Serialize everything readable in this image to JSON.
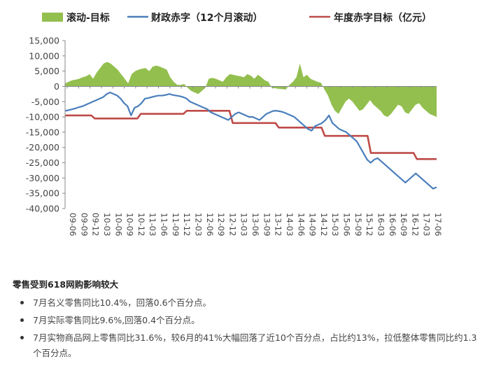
{
  "chart_data": {
    "type": "area+line",
    "title": "",
    "xlabel": "",
    "ylabel": "",
    "ylim": [
      -40000,
      15000
    ],
    "yticks": [
      15000,
      10000,
      5000,
      0,
      -5000,
      -10000,
      -15000,
      -20000,
      -25000,
      -30000,
      -35000,
      -40000
    ],
    "ytick_labels": [
      "15,000",
      "10,000",
      "5,000",
      "0",
      "-5,000",
      "-10,000",
      "-15,000",
      "-20,000",
      "-25,000",
      "-30,000",
      "-35,000",
      "-40,000"
    ],
    "x_tick_labels": [
      "09-06",
      "09-09",
      "09-12",
      "10-03",
      "10-06",
      "10-09",
      "10-12",
      "11-03",
      "11-06",
      "11-09",
      "11-12",
      "12-03",
      "12-06",
      "12-09",
      "12-12",
      "13-03",
      "13-06",
      "13-09",
      "13-12",
      "14-03",
      "14-06",
      "14-09",
      "14-12",
      "15-03",
      "15-06",
      "15-09",
      "15-12",
      "16-03",
      "16-06",
      "16-09",
      "16-12",
      "17-03",
      "17-06"
    ],
    "legend_position": "top",
    "series": [
      {
        "name": "滚动-目标",
        "kind": "area",
        "color": "#93bf4f",
        "values": [
          1000,
          1500,
          2000,
          2200,
          2500,
          3000,
          3300,
          4000,
          2500,
          4500,
          6000,
          7500,
          8000,
          7500,
          6500,
          5500,
          4000,
          2500,
          1000,
          4000,
          5000,
          5500,
          5800,
          6000,
          5000,
          6500,
          6800,
          6500,
          6000,
          5500,
          3000,
          1500,
          500,
          500,
          800,
          -500,
          -1500,
          -2000,
          -2500,
          -1500,
          -500,
          2500,
          2800,
          2500,
          2000,
          1500,
          3000,
          4000,
          3800,
          3500,
          3300,
          3000,
          4000,
          3500,
          2500,
          3800,
          3000,
          2000,
          1500,
          -500,
          -600,
          -800,
          -900,
          -1000,
          500,
          1500,
          3000,
          7500,
          3000,
          3800,
          2500,
          2000,
          1500,
          1200,
          -1000,
          -3000,
          -6000,
          -8000,
          -9000,
          -7000,
          -5000,
          -4000,
          -5000,
          -6500,
          -8000,
          -7500,
          -6000,
          -4500,
          -6000,
          -7000,
          -8000,
          -9500,
          -10000,
          -9000,
          -7500,
          -6000,
          -6500,
          -8500,
          -9000,
          -7500,
          -6000,
          -5500,
          -7000,
          -8000,
          -9000,
          -9500,
          -10000
        ]
      },
      {
        "name": "财政赤字（12个月滚动）",
        "kind": "line",
        "color": "#4a7ebb",
        "values": [
          -8000,
          -7800,
          -7500,
          -7200,
          -6800,
          -6500,
          -6000,
          -5500,
          -5000,
          -4500,
          -4000,
          -3500,
          -2500,
          -2000,
          -2500,
          -3000,
          -4000,
          -5500,
          -6500,
          -9500,
          -7000,
          -6500,
          -5500,
          -4000,
          -3800,
          -3500,
          -3200,
          -3000,
          -3000,
          -2800,
          -2500,
          -2800,
          -3000,
          -3200,
          -3500,
          -4000,
          -5000,
          -5500,
          -6000,
          -6500,
          -7000,
          -7500,
          -8500,
          -9000,
          -9500,
          -10000,
          -10500,
          -11000,
          -10000,
          -9000,
          -8500,
          -9000,
          -9500,
          -10000,
          -10000,
          -10500,
          -11000,
          -10000,
          -9000,
          -8500,
          -8000,
          -8000,
          -8200,
          -8500,
          -9000,
          -9500,
          -10000,
          -11000,
          -12000,
          -13000,
          -14000,
          -14500,
          -13000,
          -12500,
          -12000,
          -11000,
          -9500,
          -12000,
          -13000,
          -14000,
          -14500,
          -15000,
          -16000,
          -17000,
          -18000,
          -20000,
          -22000,
          -24000,
          -25000,
          -24000,
          -23500,
          -24500,
          -25500,
          -26500,
          -27500,
          -28500,
          -29500,
          -30500,
          -31500,
          -30500,
          -29500,
          -28500,
          -29500,
          -30500,
          -31500,
          -32500,
          -33500,
          -33000
        ]
      },
      {
        "name": "年度赤字目标（亿元）",
        "kind": "step",
        "color": "#be4b48",
        "values": [
          -9500,
          -9500,
          -9500,
          -9500,
          -9500,
          -9500,
          -9500,
          -9500,
          -9500,
          -10500,
          -10500,
          -10500,
          -10500,
          -10500,
          -10500,
          -10500,
          -10500,
          -10500,
          -10500,
          -10500,
          -10500,
          -10500,
          -10500,
          -9000,
          -9000,
          -9000,
          -9000,
          -9000,
          -9000,
          -9000,
          -9000,
          -9000,
          -9000,
          -9000,
          -9000,
          -9000,
          -9000,
          -8000,
          -8000,
          -8000,
          -8000,
          -8000,
          -8000,
          -8000,
          -8000,
          -8000,
          -8000,
          -8000,
          -8000,
          -8000,
          -8000,
          -12000,
          -12000,
          -12000,
          -12000,
          -12000,
          -12000,
          -12000,
          -12000,
          -12000,
          -12000,
          -12000,
          -12000,
          -12000,
          -12000,
          -13500,
          -13500,
          -13500,
          -13500,
          -13500,
          -13500,
          -13500,
          -13500,
          -13500,
          -13500,
          -13500,
          -13500,
          -13500,
          -13500,
          -16200,
          -16200,
          -16200,
          -16200,
          -16200,
          -16200,
          -16200,
          -16200,
          -16200,
          -16200,
          -16200,
          -16200,
          -16200,
          -16200,
          -21800,
          -21800,
          -21800,
          -21800,
          -21800,
          -21800,
          -21800,
          -21800,
          -21800,
          -21800,
          -21800,
          -21800,
          -21800,
          -21800,
          -23800,
          -23800,
          -23800,
          -23800,
          -23800,
          -23800,
          -23800
        ]
      }
    ],
    "colors": {
      "axis": "#888888",
      "tick_text": "#444444",
      "legend_text": "#222222"
    }
  },
  "article": {
    "heading": "零售受到618网购影响较大",
    "bullets": [
      "7月名义零售同比10.4%，回落0.6个百分点。",
      "7月实际零售同比9.6%,回落0.4个百分点。",
      "7月实物商品网上零售同比31.6%，较6月的41%大幅回落了近10个百分点，占比约13%，拉低整体零售同比约1.3个百分点。"
    ]
  }
}
